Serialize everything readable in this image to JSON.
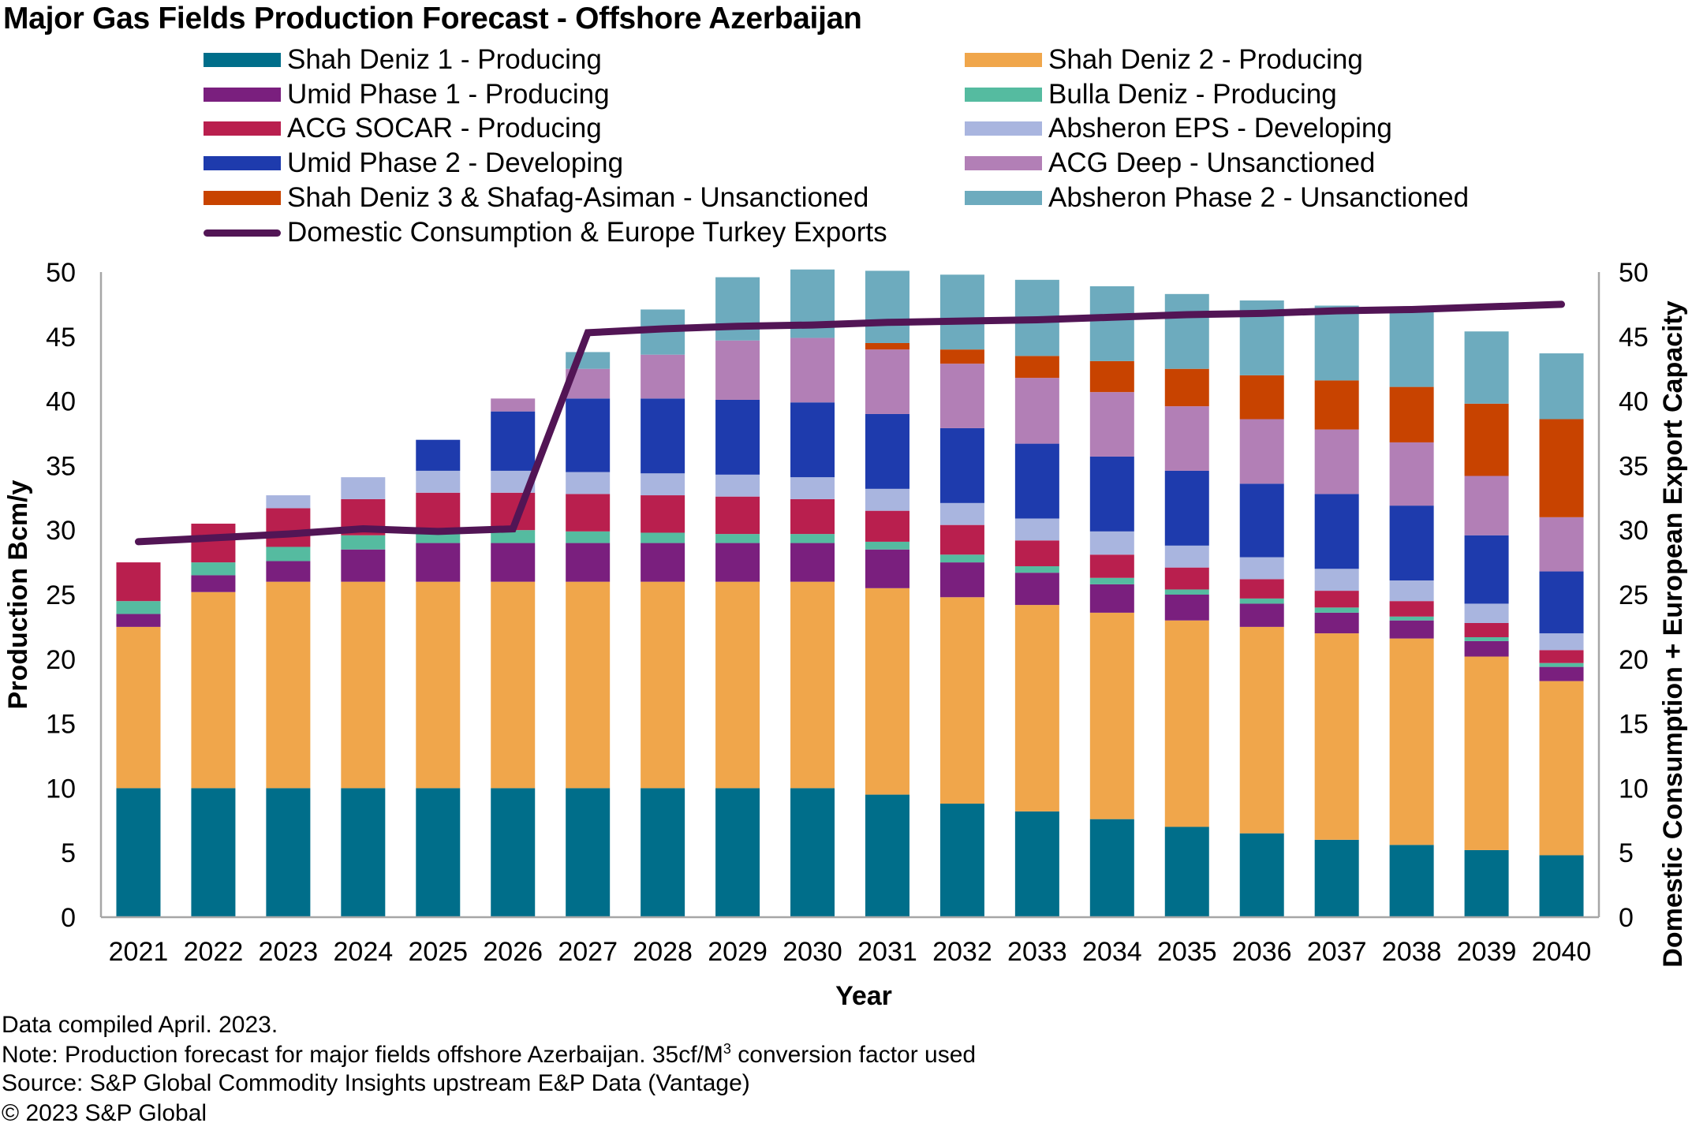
{
  "chart_data": {
    "type": "bar",
    "stacked": true,
    "title": "Major Gas Fields Production Forecast - Offshore Azerbaijan",
    "xlabel": "Year",
    "ylabel": "Production Bcm/y",
    "y2label": "Domestic Consumption + European Export Capacity",
    "ylim": [
      0,
      50
    ],
    "y2lim": [
      0,
      50
    ],
    "yticks": [
      "0",
      "5",
      "10",
      "15",
      "20",
      "25",
      "30",
      "35",
      "40",
      "45",
      "50"
    ],
    "grid": false,
    "legend_position": "top",
    "categories": [
      "2021",
      "2022",
      "2023",
      "2024",
      "2025",
      "2026",
      "2027",
      "2028",
      "2029",
      "2030",
      "2031",
      "2032",
      "2033",
      "2034",
      "2035",
      "2036",
      "2037",
      "2038",
      "2039",
      "2040"
    ],
    "series": [
      {
        "name": "Shah Deniz 1 - Producing",
        "color": "#006E8A",
        "values": [
          10,
          10,
          10,
          10,
          10,
          10,
          10,
          10,
          10,
          10,
          9.5,
          8.8,
          8.2,
          7.6,
          7.0,
          6.5,
          6.0,
          5.6,
          5.2,
          4.8
        ]
      },
      {
        "name": "Shah Deniz 2 - Producing",
        "color": "#F0A64B",
        "values": [
          12.5,
          15.2,
          16,
          16,
          16,
          16,
          16,
          16,
          16,
          16,
          16,
          16,
          16,
          16,
          16,
          16,
          16,
          16,
          15,
          13.5
        ]
      },
      {
        "name": "Umid Phase 1 - Producing",
        "color": "#7A1F7E",
        "values": [
          1.0,
          1.3,
          1.6,
          2.5,
          3.0,
          3.0,
          3.0,
          3.0,
          3.0,
          3.0,
          3.0,
          2.7,
          2.5,
          2.2,
          2.0,
          1.8,
          1.6,
          1.4,
          1.2,
          1.1
        ]
      },
      {
        "name": "Bulla Deniz - Producing",
        "color": "#55BBA0",
        "values": [
          1.0,
          1.0,
          1.1,
          1.1,
          0.8,
          1.0,
          0.9,
          0.8,
          0.7,
          0.7,
          0.6,
          0.6,
          0.5,
          0.5,
          0.4,
          0.4,
          0.4,
          0.3,
          0.3,
          0.3
        ]
      },
      {
        "name": "ACG SOCAR - Producing",
        "color": "#B91F4E",
        "values": [
          3.0,
          3.0,
          3.0,
          2.8,
          3.1,
          2.9,
          2.9,
          2.9,
          2.9,
          2.7,
          2.4,
          2.3,
          2.0,
          1.8,
          1.7,
          1.5,
          1.3,
          1.2,
          1.1,
          1.0
        ]
      },
      {
        "name": "Absheron EPS - Developing",
        "color": "#A9B5DF",
        "values": [
          0,
          0,
          1.0,
          1.7,
          1.7,
          1.7,
          1.7,
          1.7,
          1.7,
          1.7,
          1.7,
          1.7,
          1.7,
          1.8,
          1.7,
          1.7,
          1.7,
          1.6,
          1.5,
          1.3
        ]
      },
      {
        "name": "Umid Phase 2 - Developing",
        "color": "#1E3BAD",
        "values": [
          0,
          0,
          0,
          0,
          2.4,
          4.6,
          5.7,
          5.8,
          5.8,
          5.8,
          5.8,
          5.8,
          5.8,
          5.8,
          5.8,
          5.7,
          5.8,
          5.8,
          5.3,
          4.8
        ]
      },
      {
        "name": "ACG Deep - Unsanctioned",
        "color": "#B27FB6",
        "values": [
          0,
          0,
          0,
          0,
          0,
          1.0,
          2.3,
          3.4,
          4.6,
          5.0,
          5.0,
          5.0,
          5.1,
          5.0,
          5.0,
          5.0,
          5.0,
          4.9,
          4.6,
          4.2
        ]
      },
      {
        "name": "Shah Deniz 3 & Shafag-Asiman - Unsanctioned",
        "color": "#C84300",
        "values": [
          0,
          0,
          0,
          0,
          0,
          0,
          0,
          0,
          0,
          0,
          0.5,
          1.1,
          1.7,
          2.4,
          2.9,
          3.4,
          3.8,
          4.3,
          5.6,
          7.6
        ]
      },
      {
        "name": "Absheron Phase 2 - Unsanctioned",
        "color": "#6DABBE",
        "values": [
          0,
          0,
          0,
          0,
          0,
          0,
          1.3,
          3.5,
          4.9,
          5.3,
          5.6,
          5.8,
          5.9,
          5.8,
          5.8,
          5.8,
          5.8,
          5.8,
          5.6,
          5.1
        ]
      }
    ],
    "line_series": {
      "name": "Domestic Consumption & Europe Turkey Exports",
      "color": "#521555",
      "axis": "secondary",
      "values": [
        29.1,
        29.4,
        29.7,
        30.1,
        29.9,
        30.1,
        45.3,
        45.6,
        45.8,
        45.9,
        46.1,
        46.2,
        46.3,
        46.5,
        46.7,
        46.8,
        47.0,
        47.1,
        47.3,
        47.5
      ]
    },
    "legend_order": [
      "Shah Deniz 1 - Producing",
      "Shah Deniz 2 - Producing",
      "Umid Phase 1 - Producing",
      "Bulla Deniz - Producing",
      "ACG SOCAR - Producing",
      "Absheron EPS - Developing",
      "Umid Phase 2 - Developing",
      "ACG Deep - Unsanctioned",
      "Shah Deniz 3 & Shafag-Asiman - Unsanctioned",
      "Absheron Phase 2 - Unsanctioned",
      "Domestic Consumption & Europe Turkey Exports"
    ]
  },
  "footnotes": {
    "compiled": "Data compiled April. 2023.",
    "note_prefix": "Note: Production forecast for major fields offshore Azerbaijan.  35cf/M",
    "note_sup": "3",
    "note_suffix": " conversion factor used",
    "source": "Source: S&P Global Commodity Insights upstream E&P Data (Vantage)",
    "copyright": "© 2023 S&P Global"
  }
}
